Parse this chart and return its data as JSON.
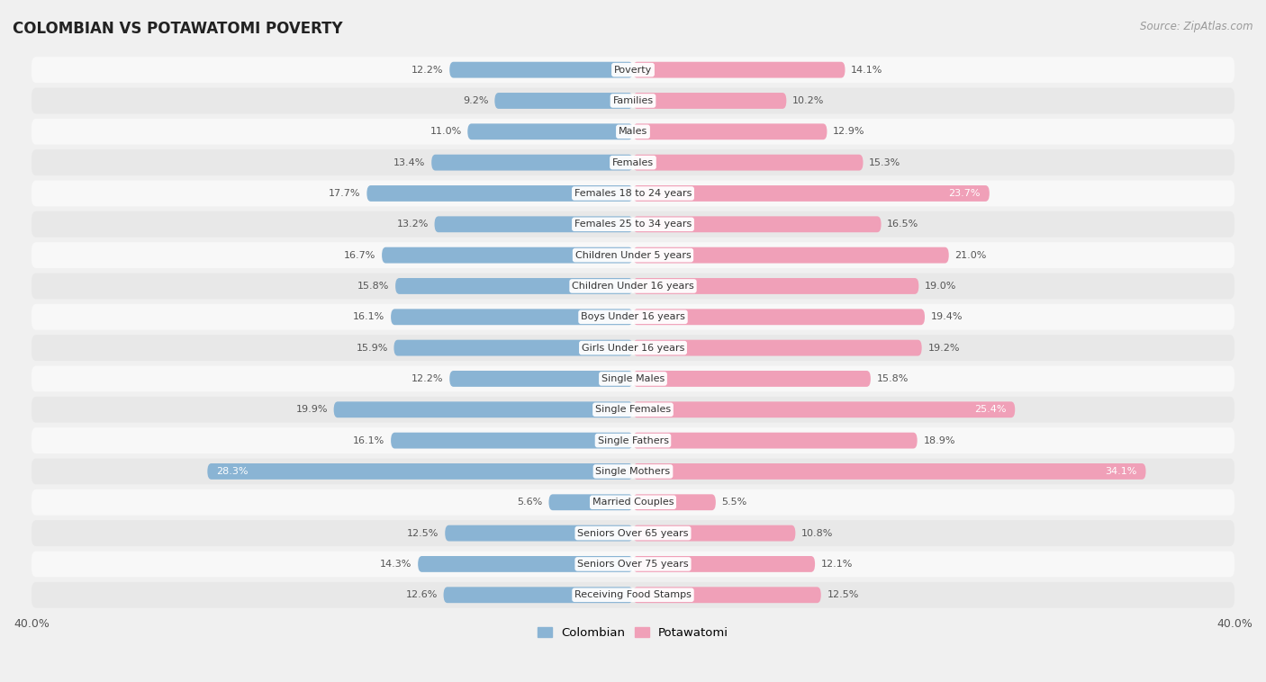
{
  "title": "COLOMBIAN VS POTAWATOMI POVERTY",
  "source": "Source: ZipAtlas.com",
  "categories": [
    "Poverty",
    "Families",
    "Males",
    "Females",
    "Females 18 to 24 years",
    "Females 25 to 34 years",
    "Children Under 5 years",
    "Children Under 16 years",
    "Boys Under 16 years",
    "Girls Under 16 years",
    "Single Males",
    "Single Females",
    "Single Fathers",
    "Single Mothers",
    "Married Couples",
    "Seniors Over 65 years",
    "Seniors Over 75 years",
    "Receiving Food Stamps"
  ],
  "colombian": [
    12.2,
    9.2,
    11.0,
    13.4,
    17.7,
    13.2,
    16.7,
    15.8,
    16.1,
    15.9,
    12.2,
    19.9,
    16.1,
    28.3,
    5.6,
    12.5,
    14.3,
    12.6
  ],
  "potawatomi": [
    14.1,
    10.2,
    12.9,
    15.3,
    23.7,
    16.5,
    21.0,
    19.0,
    19.4,
    19.2,
    15.8,
    25.4,
    18.9,
    34.1,
    5.5,
    10.8,
    12.1,
    12.5
  ],
  "colombian_color": "#8ab4d4",
  "potawatomi_color": "#f0a0b8",
  "background_color": "#f0f0f0",
  "row_color_odd": "#f8f8f8",
  "row_color_even": "#e8e8e8",
  "axis_max": 40.0,
  "bar_height": 0.52,
  "title_fontsize": 12,
  "source_fontsize": 8.5,
  "label_fontsize": 8.0,
  "category_fontsize": 8.0
}
